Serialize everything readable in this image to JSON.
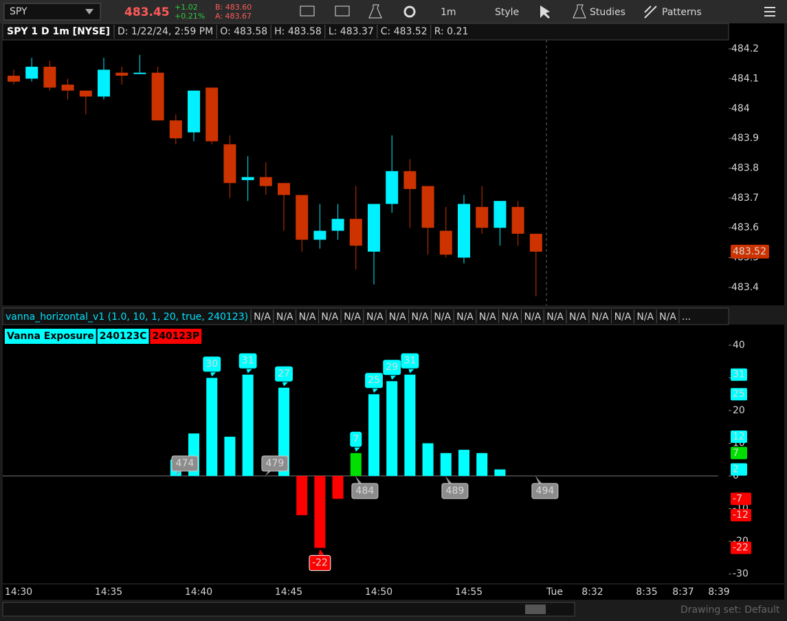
{
  "toolbar": {
    "symbol": "SPY",
    "last": "483.45",
    "change": "+1.02",
    "change_pct": "+0.21%",
    "bid": "B: 483.60",
    "ask": "A: 483.67",
    "interval": "1m",
    "buttons": [
      "Style",
      "Studies",
      "Patterns"
    ]
  },
  "info_bar": {
    "title": "SPY 1 D 1m [NYSE]",
    "fields": [
      "D: 1/22/24, 2:59 PM",
      "O: 483.58",
      "H: 483.58",
      "L: 483.37",
      "C: 483.52",
      "R: 0.21"
    ]
  },
  "price_chart": {
    "type": "candlestick",
    "ylim": [
      483.34,
      484.23
    ],
    "yticks": [
      484.2,
      484.1,
      484,
      483.9,
      483.8,
      483.7,
      483.6,
      483.5,
      483.4
    ],
    "open": [
      484.11,
      484.1,
      484.14,
      484.08,
      484.06,
      484.04,
      484.12,
      484.12,
      484.12,
      483.96,
      483.92,
      484.07,
      483.88,
      483.76,
      483.77,
      483.75,
      483.71,
      483.56,
      483.59,
      483.63,
      483.52,
      483.68,
      483.79,
      483.74,
      483.59,
      483.5,
      483.67,
      483.6,
      483.67,
      483.58
    ],
    "high": [
      484.13,
      484.17,
      484.16,
      484.1,
      484.06,
      484.17,
      484.14,
      484.18,
      484.14,
      483.98,
      484.06,
      484.07,
      483.91,
      483.84,
      483.82,
      483.75,
      483.71,
      483.68,
      483.68,
      483.74,
      483.68,
      483.91,
      483.83,
      483.74,
      483.67,
      483.71,
      483.74,
      483.69,
      483.69,
      483.58
    ],
    "low": [
      484.08,
      484.09,
      484.06,
      484.03,
      483.98,
      484.03,
      484.08,
      484.12,
      483.96,
      483.88,
      483.89,
      483.88,
      483.7,
      483.69,
      483.71,
      483.59,
      483.52,
      483.53,
      483.56,
      483.46,
      483.41,
      483.65,
      483.6,
      483.51,
      483.5,
      483.48,
      483.58,
      483.54,
      483.54,
      483.37
    ],
    "close": [
      484.09,
      484.14,
      484.07,
      484.06,
      484.04,
      484.13,
      484.11,
      484.12,
      483.96,
      483.9,
      484.06,
      483.89,
      483.75,
      483.77,
      483.74,
      483.71,
      483.56,
      483.59,
      483.63,
      483.54,
      483.68,
      483.79,
      483.73,
      483.6,
      483.51,
      483.68,
      483.6,
      483.69,
      483.58,
      483.52
    ],
    "up_color": "#00f0ff",
    "down_color": "#cc3300",
    "last_price": {
      "value": 483.52,
      "label": "483.52"
    }
  },
  "indicator": {
    "type": "bar",
    "title": "vanna_horizontal_v1 (1.0, 10, 1, 20, true, 240123)",
    "status": [
      {
        "text": "N/A",
        "color": "#00e5ff"
      },
      {
        "text": "N/A",
        "color": "#ff6b8a"
      },
      {
        "text": "N/A",
        "color": "#e0e0e0"
      },
      {
        "text": "N/A",
        "color": "#e6c229"
      },
      {
        "text": "N/A",
        "color": "#ff5a6e"
      },
      {
        "text": "N/A",
        "color": "#2ecc40"
      },
      {
        "text": "N/A",
        "color": "#8a8a8a"
      },
      {
        "text": "N/A",
        "color": "#f5e6a8"
      },
      {
        "text": "N/A",
        "color": "#ffffff"
      },
      {
        "text": "N/A",
        "color": "#e040fb"
      },
      {
        "text": "N/A",
        "color": "#00e5ff"
      },
      {
        "text": "N/A",
        "color": "#ff6b8a"
      },
      {
        "text": "N/A",
        "color": "#e0e0e0"
      },
      {
        "text": "N/A",
        "color": "#e6c229"
      },
      {
        "text": "N/A",
        "color": "#ff4040"
      },
      {
        "text": "N/A",
        "color": "#2ecc40"
      },
      {
        "text": "N/A",
        "color": "#8a8a8a"
      },
      {
        "text": "N/A",
        "color": "#f5e6a8"
      },
      {
        "text": "N/A",
        "color": "#ffffff"
      },
      {
        "text": "...",
        "color": "#d8d8d8"
      }
    ],
    "legend": [
      {
        "text": "Vanna Exposure",
        "color": "#00ffff"
      },
      {
        "text": "240123C",
        "color": "#00ffff"
      },
      {
        "text": "240123P",
        "color": "#ff0000"
      }
    ],
    "ylim": [
      -32.8,
      46.3
    ],
    "yticks": [
      40,
      30,
      20,
      10,
      0,
      -10,
      -20,
      -30
    ],
    "values": [
      null,
      null,
      null,
      null,
      null,
      null,
      null,
      null,
      null,
      5,
      13,
      30,
      12,
      31,
      0,
      27,
      -12,
      -22,
      -7,
      7,
      25,
      29,
      31,
      10,
      7,
      8,
      7,
      2,
      null,
      null
    ],
    "colors": [
      null,
      null,
      null,
      null,
      null,
      null,
      null,
      null,
      null,
      "#00ffff",
      "#00ffff",
      "#00ffff",
      "#00ffff",
      "#00ffff",
      "#00ffff",
      "#00ffff",
      "#ff0000",
      "#ff0000",
      "#ff0000",
      "#00e000",
      "#00ffff",
      "#00ffff",
      "#00ffff",
      "#00ffff",
      "#00ffff",
      "#00ffff",
      "#00ffff",
      "#00ffff",
      null,
      null
    ],
    "value_labels": [
      null,
      null,
      null,
      null,
      null,
      null,
      null,
      null,
      null,
      null,
      null,
      "30",
      null,
      "31",
      null,
      "27",
      null,
      "-22",
      null,
      "7",
      "25",
      "29",
      "31",
      null,
      null,
      null,
      null,
      null,
      null,
      null
    ],
    "strikes": [
      474,
      479,
      484,
      489,
      494
    ],
    "axis_markers": [
      {
        "value": 31,
        "color": "#00ffff"
      },
      {
        "value": 25,
        "color": "#00ffff"
      },
      {
        "value": 12,
        "color": "#00ffff"
      },
      {
        "value": 7,
        "color": "#00e000"
      },
      {
        "value": 2,
        "color": "#00ffff"
      },
      {
        "value": -7,
        "color": "#ff0000"
      },
      {
        "value": -12,
        "color": "#ff0000"
      },
      {
        "value": -22,
        "color": "#ff0000"
      }
    ]
  },
  "x_axis": {
    "labels": [
      "14:30",
      "14:35",
      "14:40",
      "14:45",
      "14:50",
      "14:55",
      "Tue",
      "8:32",
      "8:35",
      "8:37",
      "8:39"
    ]
  },
  "status_bar": {
    "drawing_set": "Drawing set: Default"
  }
}
